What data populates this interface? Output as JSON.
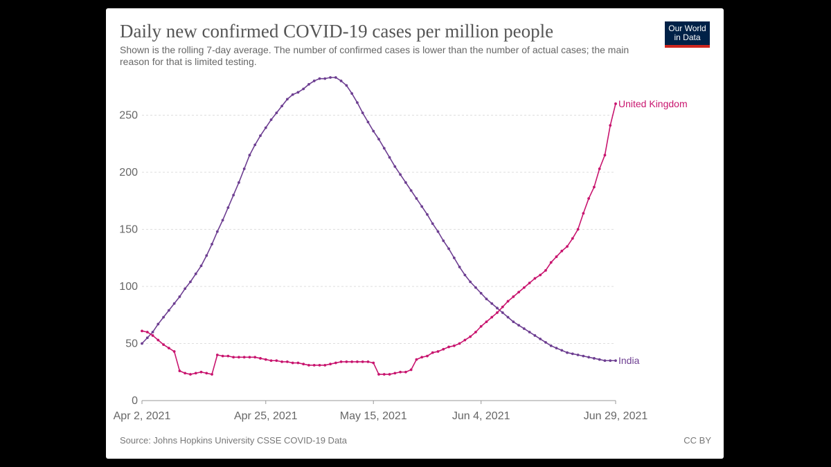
{
  "colors": {
    "india": "#6d3e91",
    "uk": "#c8146e",
    "grid": "#dddddd",
    "axis": "#999999",
    "logo_bg": "#002147",
    "logo_bar": "#ce261e"
  },
  "logo": {
    "line1": "Our World",
    "line2": "in Data"
  },
  "source_text": "Source: Johns Hopkins University CSSE COVID-19 Data",
  "license_text": "CC BY",
  "chart_data": {
    "type": "line",
    "title": "Daily new confirmed COVID-19 cases per million people",
    "subtitle": "Shown is the rolling 7-day average. The number of confirmed cases is lower than the number of actual cases; the main reason for that is limited testing.",
    "xlabel": "",
    "ylabel": "",
    "x_range": [
      "2021-04-02",
      "2021-06-29"
    ],
    "x_ticks": [
      {
        "day": 0,
        "label": "Apr 2, 2021"
      },
      {
        "day": 23,
        "label": "Apr 25, 2021"
      },
      {
        "day": 43,
        "label": "May 15, 2021"
      },
      {
        "day": 63,
        "label": "Jun 4, 2021"
      },
      {
        "day": 88,
        "label": "Jun 29, 2021"
      }
    ],
    "ylim": [
      0,
      283
    ],
    "y_ticks": [
      0,
      50,
      100,
      150,
      200,
      250
    ],
    "grid": true,
    "series": [
      {
        "name": "India",
        "key": "india",
        "x_start": "2021-04-02",
        "values": [
          50,
          55,
          60,
          67,
          73,
          79,
          85,
          91,
          98,
          104,
          111,
          118,
          127,
          137,
          148,
          158,
          169,
          180,
          191,
          203,
          215,
          224,
          232,
          239,
          246,
          252,
          258,
          264,
          268,
          270,
          273,
          277,
          280,
          282,
          282,
          283,
          283,
          280,
          276,
          269,
          261,
          252,
          244,
          236,
          229,
          221,
          213,
          205,
          198,
          191,
          184,
          177,
          170,
          163,
          155,
          148,
          140,
          133,
          125,
          117,
          110,
          104,
          99,
          94,
          89,
          85,
          81,
          77,
          73,
          69,
          66,
          63,
          60,
          57,
          54,
          51,
          48,
          46,
          44,
          42,
          41,
          40,
          39,
          38,
          37,
          36,
          35,
          35,
          35
        ]
      },
      {
        "name": "United Kingdom",
        "key": "uk",
        "x_start": "2021-04-02",
        "values": [
          61,
          60,
          57,
          53,
          49,
          46,
          43,
          26,
          24,
          23,
          24,
          25,
          24,
          23,
          40,
          39,
          39,
          38,
          38,
          38,
          38,
          38,
          37,
          36,
          35,
          35,
          34,
          34,
          33,
          33,
          32,
          31,
          31,
          31,
          31,
          32,
          33,
          34,
          34,
          34,
          34,
          34,
          34,
          33,
          23,
          23,
          23,
          24,
          25,
          25,
          27,
          36,
          38,
          39,
          42,
          43,
          45,
          47,
          48,
          50,
          53,
          56,
          60,
          65,
          69,
          73,
          77,
          82,
          87,
          91,
          95,
          99,
          103,
          107,
          110,
          114,
          121,
          126,
          131,
          135,
          142,
          150,
          164,
          177,
          187,
          203,
          215,
          241,
          260
        ]
      }
    ]
  }
}
